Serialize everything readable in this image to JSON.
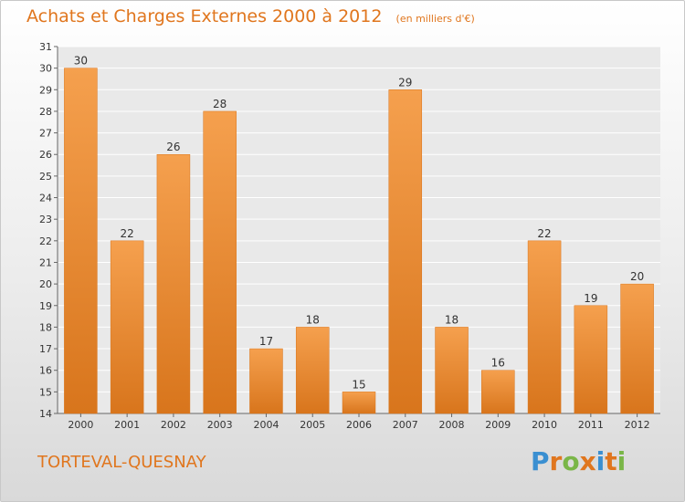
{
  "header": {
    "title": "Achats et Charges Externes 2000 à 2012",
    "subtitle": "(en milliers d'€)"
  },
  "footer": {
    "commune": "TORTEVAL-QUESNAY",
    "logo": "Proxiti"
  },
  "colors": {
    "accent": "#e0761e",
    "bar_light": "#f5a04e",
    "bar_dark": "#d8751c",
    "plot_bg": "#e9e9e9",
    "grid": "#ffffff",
    "axis_text": "#333333",
    "logo_letters": [
      "#3a8fd1",
      "#e0761e",
      "#7ab648",
      "#e0761e",
      "#3a8fd1",
      "#e0761e",
      "#7ab648"
    ]
  },
  "chart_data": {
    "type": "bar",
    "title": "Achats et Charges Externes 2000 à 2012",
    "subtitle": "(en milliers d'€)",
    "xlabel": "",
    "ylabel": "",
    "categories": [
      "2000",
      "2001",
      "2002",
      "2003",
      "2004",
      "2005",
      "2006",
      "2007",
      "2008",
      "2009",
      "2010",
      "2011",
      "2012"
    ],
    "values": [
      30,
      22,
      26,
      28,
      17,
      18,
      15,
      29,
      18,
      16,
      22,
      19,
      20
    ],
    "ylim": [
      14,
      31
    ],
    "yticks": [
      14,
      15,
      16,
      17,
      18,
      19,
      20,
      21,
      22,
      23,
      24,
      25,
      26,
      27,
      28,
      29,
      30,
      31
    ],
    "grid": true,
    "data_labels": true
  }
}
